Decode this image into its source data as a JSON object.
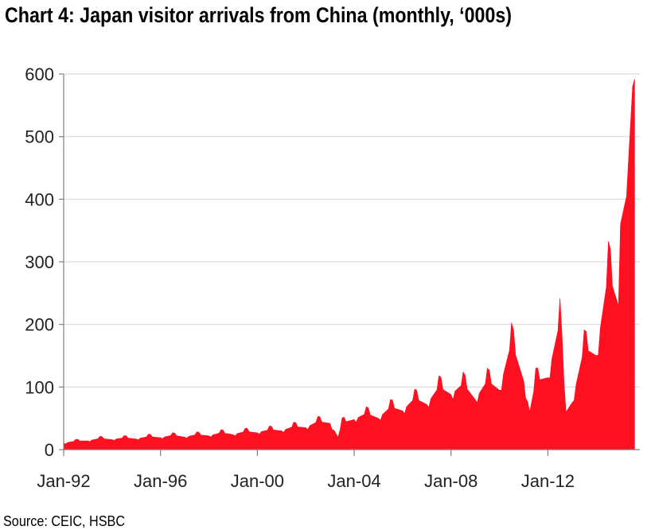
{
  "title": "Chart 4: Japan visitor arrivals from China (monthly, ‘000s)",
  "source": "Source: CEIC, HSBC",
  "colors": {
    "area": "#ff1020",
    "grid": "#d9d9d9",
    "axis": "#7f7f7f"
  },
  "chart_data": {
    "type": "area",
    "title": "Chart 4: Japan visitor arrivals from China (monthly, ‘000s)",
    "xlabel": "",
    "ylabel": "",
    "ylim": [
      0,
      600
    ],
    "yticks": [
      0,
      100,
      200,
      300,
      400,
      500,
      600
    ],
    "xticks": [
      "Jan-92",
      "Jan-96",
      "Jan-00",
      "Jan-04",
      "Jan-08",
      "Jan-12"
    ],
    "x_range": [
      "1992-01",
      "2015-08"
    ],
    "grid": true,
    "legend": "none",
    "series": [
      {
        "points": [
          [
            "1992-01",
            10
          ],
          [
            "1992-07",
            14
          ],
          [
            "1993-01",
            14
          ],
          [
            "1993-07",
            18
          ],
          [
            "1994-01",
            16
          ],
          [
            "1994-07",
            19
          ],
          [
            "1995-01",
            17
          ],
          [
            "1995-07",
            21
          ],
          [
            "1996-01",
            19
          ],
          [
            "1996-07",
            23
          ],
          [
            "1997-01",
            20
          ],
          [
            "1997-07",
            24
          ],
          [
            "1998-01",
            22
          ],
          [
            "1998-07",
            27
          ],
          [
            "1999-01",
            24
          ],
          [
            "1999-07",
            29
          ],
          [
            "2000-01",
            27
          ],
          [
            "2000-07",
            32
          ],
          [
            "2001-01",
            30
          ],
          [
            "2001-07",
            37
          ],
          [
            "2002-01",
            35
          ],
          [
            "2002-07",
            45
          ],
          [
            "2003-01",
            42
          ],
          [
            "2003-05",
            20
          ],
          [
            "2003-07",
            43
          ],
          [
            "2004-01",
            48
          ],
          [
            "2004-07",
            58
          ],
          [
            "2005-01",
            50
          ],
          [
            "2005-07",
            68
          ],
          [
            "2006-01",
            62
          ],
          [
            "2006-07",
            82
          ],
          [
            "2007-01",
            72
          ],
          [
            "2007-07",
            100
          ],
          [
            "2008-01",
            88
          ],
          [
            "2008-07",
            105
          ],
          [
            "2009-01",
            80
          ],
          [
            "2009-07",
            110
          ],
          [
            "2010-01",
            95
          ],
          [
            "2010-07",
            172
          ],
          [
            "2011-01",
            110
          ],
          [
            "2011-04",
            60
          ],
          [
            "2011-07",
            110
          ],
          [
            "2012-01",
            115
          ],
          [
            "2012-07",
            205
          ],
          [
            "2012-10",
            60
          ],
          [
            "2013-01",
            75
          ],
          [
            "2013-07",
            162
          ],
          [
            "2014-01",
            150
          ],
          [
            "2014-07",
            282
          ],
          [
            "2014-12",
            230
          ],
          [
            "2015-01",
            360
          ],
          [
            "2015-04",
            405
          ],
          [
            "2015-07",
            580
          ],
          [
            "2015-08",
            592
          ]
        ]
      }
    ]
  }
}
